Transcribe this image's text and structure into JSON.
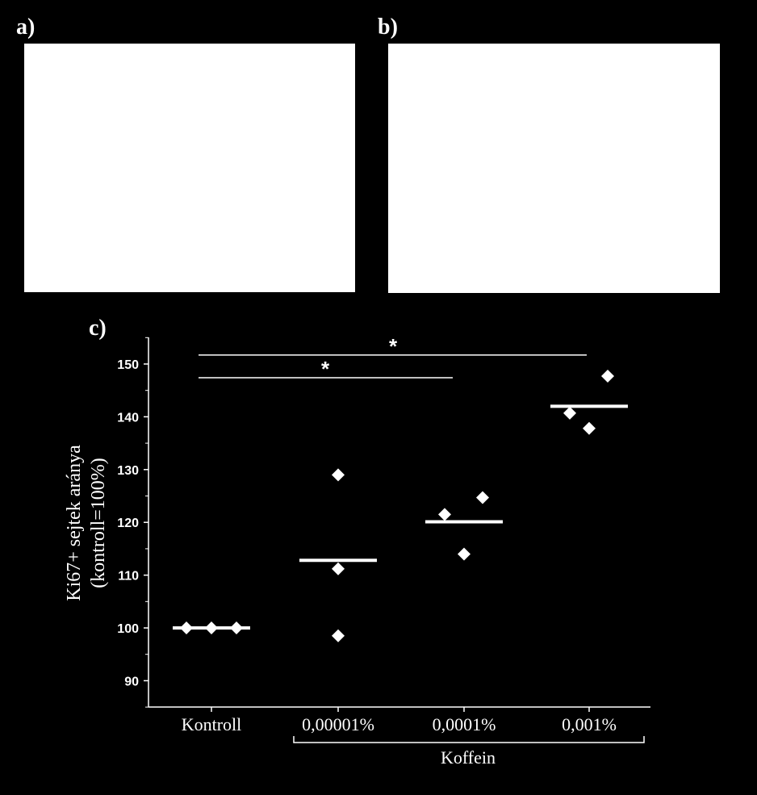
{
  "panels": {
    "a": {
      "label": "a)"
    },
    "b": {
      "label": "b)"
    },
    "c": {
      "label": "c)"
    }
  },
  "chart_data": {
    "type": "scatter",
    "ylabel_line1": "Ki67+ sejtek aránya",
    "ylabel_line2": "(kontroll=100%)",
    "ylim": [
      85,
      155
    ],
    "yticks": [
      90,
      100,
      110,
      120,
      130,
      140,
      150
    ],
    "categories": [
      "Kontroll",
      "0,00001%",
      "0,0001%",
      "0,001%"
    ],
    "group_label": "Koffein",
    "points": [
      {
        "category": 0,
        "offset": -1,
        "y": 100
      },
      {
        "category": 0,
        "offset": 0,
        "y": 100
      },
      {
        "category": 0,
        "offset": 1,
        "y": 100
      },
      {
        "category": 1,
        "offset": 0,
        "y": 129
      },
      {
        "category": 1,
        "offset": 0,
        "y": 111.2
      },
      {
        "category": 1,
        "offset": 0,
        "y": 98.5
      },
      {
        "category": 2,
        "offset": -1,
        "y": 121.5
      },
      {
        "category": 2,
        "offset": 0,
        "y": 114
      },
      {
        "category": 2,
        "offset": 1,
        "y": 124.7
      },
      {
        "category": 3,
        "offset": -1,
        "y": 140.7
      },
      {
        "category": 3,
        "offset": 0,
        "y": 137.8
      },
      {
        "category": 3,
        "offset": 1,
        "y": 147.7
      }
    ],
    "means": [
      100,
      112.8,
      120.1,
      142
    ],
    "significance": [
      {
        "from": 0,
        "to": 3,
        "y": 151.7,
        "label": "*"
      },
      {
        "from": 0,
        "to": 2,
        "y": 147.4,
        "label": "*"
      }
    ],
    "colors": {
      "background": "#000000",
      "foreground": "#ffffff"
    }
  }
}
